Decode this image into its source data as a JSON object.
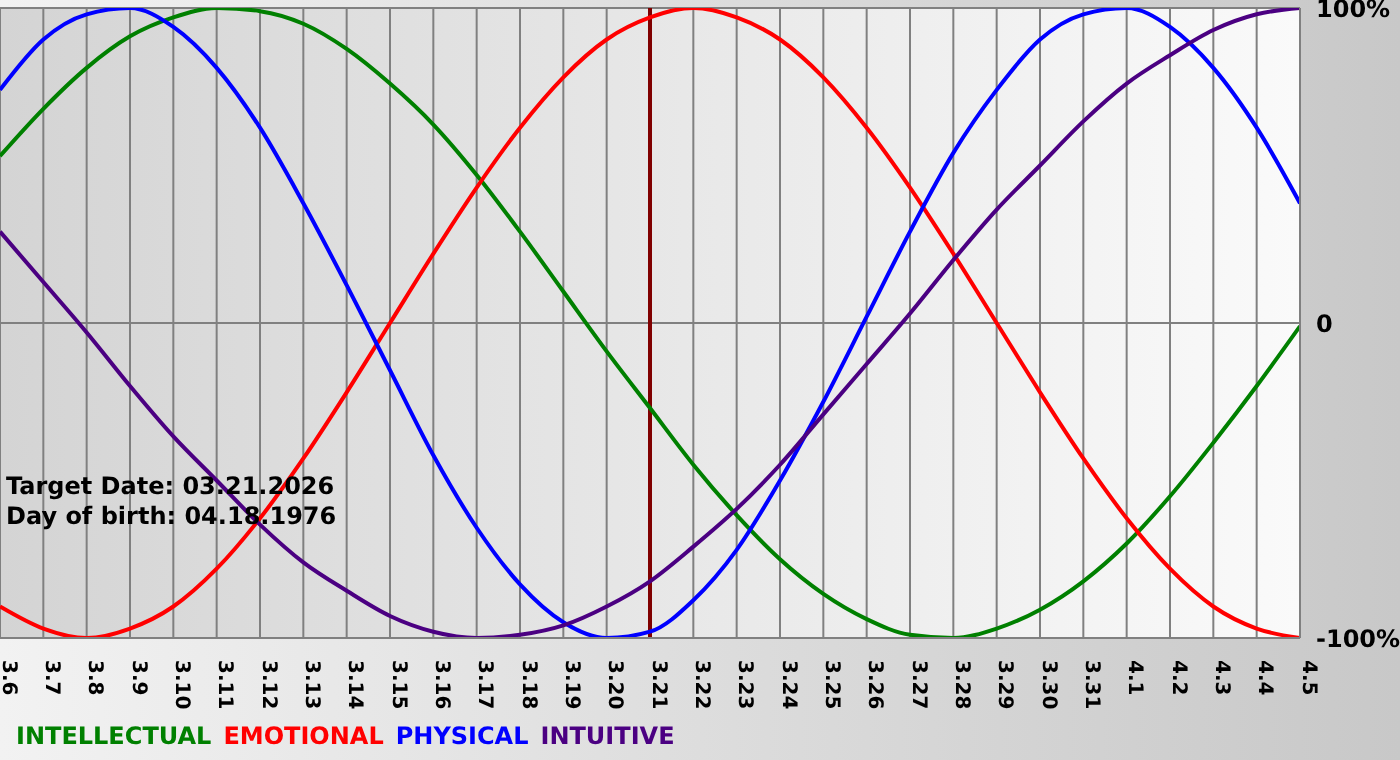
{
  "chart_data": {
    "type": "line",
    "categories": [
      "3.6",
      "3.7",
      "3.8",
      "3.9",
      "3.10",
      "3.11",
      "3.12",
      "3.13",
      "3.14",
      "3.15",
      "3.16",
      "3.17",
      "3.18",
      "3.19",
      "3.20",
      "3.21",
      "3.22",
      "3.23",
      "3.24",
      "3.25",
      "3.26",
      "3.27",
      "3.28",
      "3.29",
      "3.30",
      "3.31",
      "4.1",
      "4.2",
      "4.3",
      "4.4",
      "4.5"
    ],
    "series": [
      {
        "name": "INTELLECTUAL",
        "color": "#008000",
        "values": [
          53,
          68,
          81,
          91,
          97,
          100,
          99,
          95,
          87,
          76,
          63,
          47,
          29,
          10,
          -9,
          -27,
          -45,
          -61,
          -75,
          -86,
          -94,
          -99,
          -100,
          -97,
          -91,
          -82,
          -70,
          -55,
          -38,
          -20,
          -1
        ]
      },
      {
        "name": "EMOTIONAL",
        "color": "#ff0000",
        "values": [
          -90,
          -97,
          -100,
          -97,
          -90,
          -78,
          -62,
          -43,
          -22,
          0,
          22,
          43,
          62,
          78,
          90,
          97,
          100,
          97,
          90,
          78,
          62,
          43,
          22,
          0,
          -22,
          -43,
          -62,
          -78,
          -90,
          -97,
          -100
        ]
      },
      {
        "name": "PHYSICAL",
        "color": "#0000ff",
        "values": [
          74,
          90,
          98,
          100,
          94,
          81,
          62,
          38,
          12,
          -15,
          -42,
          -65,
          -83,
          -95,
          -100,
          -98,
          -88,
          -72,
          -50,
          -25,
          2,
          29,
          54,
          74,
          90,
          98,
          100,
          94,
          81,
          62,
          38
        ]
      },
      {
        "name": "INTUITIVE",
        "color": "#4b0082",
        "values": [
          29,
          13,
          -3,
          -20,
          -36,
          -50,
          -64,
          -76,
          -85,
          -93,
          -98,
          -100,
          -99,
          -96,
          -90,
          -82,
          -71,
          -59,
          -45,
          -29,
          -13,
          3,
          20,
          36,
          50,
          64,
          76,
          85,
          93,
          98,
          100
        ]
      }
    ],
    "ylim": [
      -100,
      100
    ],
    "yticks": [
      {
        "value": -100,
        "label": "-100%"
      },
      0,
      {
        "value": 100,
        "label": "100%"
      }
    ],
    "grid": true,
    "legend": "bottom left",
    "marker": "none",
    "line_style": "solid",
    "ref_lines": [
      {
        "axis": "x",
        "value": "3.21",
        "color": "#800000"
      }
    ],
    "annotations": [
      "Target Date: 03.21.2026",
      "Day of birth: 04.18.1976"
    ]
  }
}
